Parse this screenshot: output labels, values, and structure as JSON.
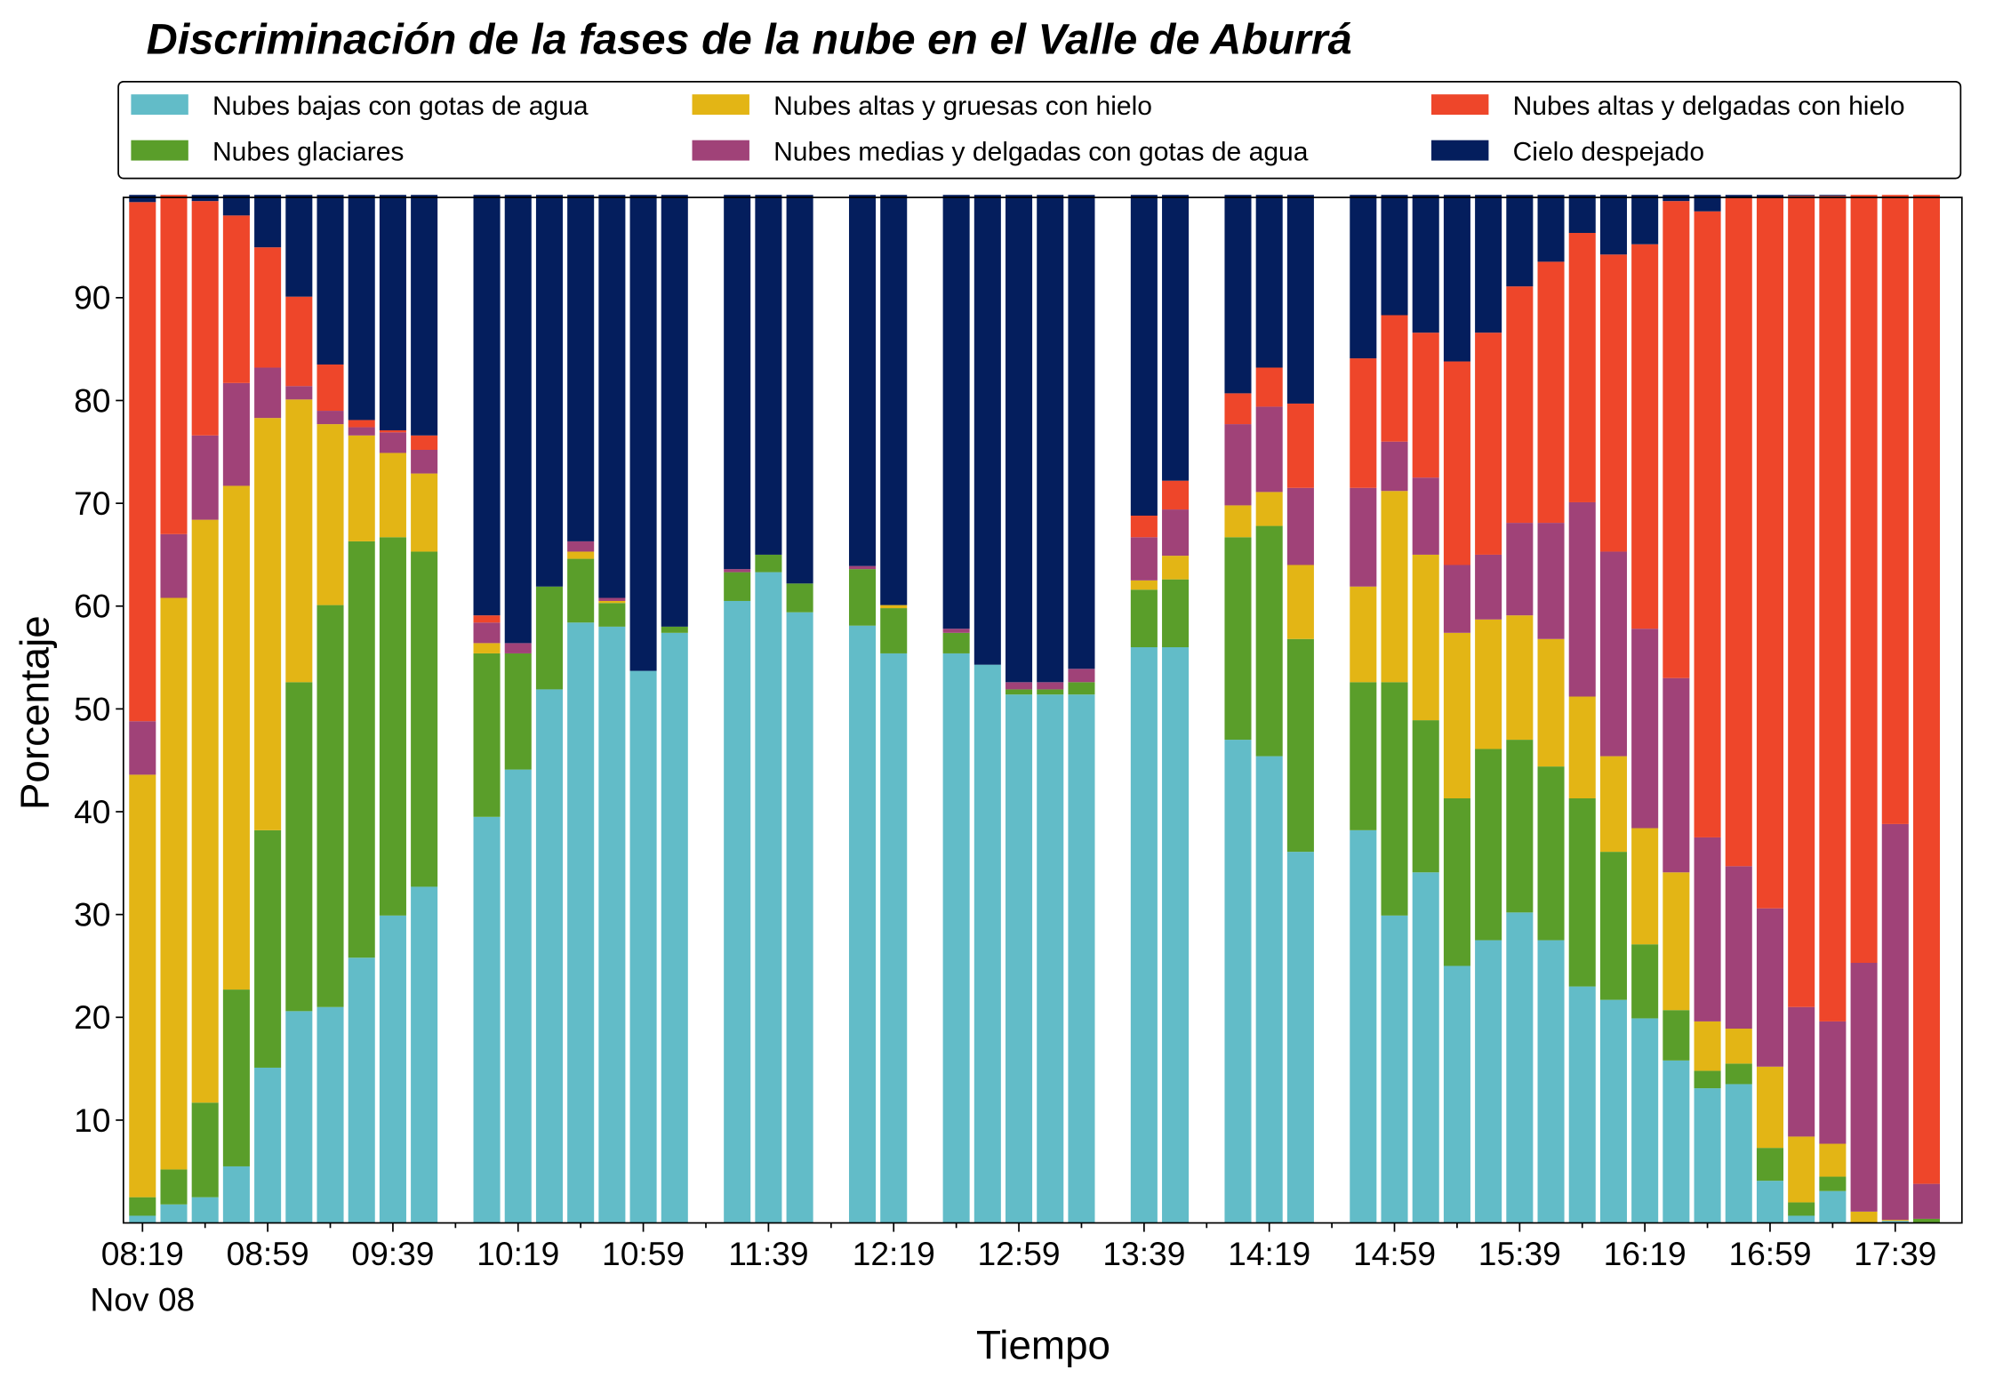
{
  "chart_data": {
    "type": "stacked_bar",
    "title": "Discriminación de la fases de la nube en el Valle de Aburrá",
    "x_label": "Tiempo",
    "y_label": "Porcentaje",
    "date_label": "Nov 08",
    "categories": [
      "08:19",
      null,
      null,
      null,
      "08:59",
      null,
      null,
      null,
      "09:39",
      null,
      null,
      null,
      "10:19",
      null,
      null,
      null,
      "10:59",
      null,
      null,
      null,
      "11:39",
      null,
      null,
      null,
      "12:19",
      null,
      null,
      null,
      "12:59",
      null,
      null,
      null,
      "13:39",
      null,
      null,
      null,
      "14:19",
      null,
      null,
      null,
      "14:59",
      null,
      null,
      null,
      "15:39",
      null,
      null,
      null,
      "16:19",
      null,
      null,
      null,
      "16:59",
      null,
      null,
      null,
      "17:39",
      null
    ],
    "ylim": [
      0,
      100
    ],
    "yticks": [
      10,
      20,
      30,
      40,
      50,
      60,
      70,
      80,
      90
    ],
    "series": [
      {
        "name": "Nubes bajas con gotas de agua",
        "color": "#62bcc8",
        "values": [
          0.7,
          1.8,
          2.5,
          5.5,
          15.1,
          20.6,
          21.0,
          25.8,
          29.9,
          32.7,
          null,
          39.5,
          44.1,
          51.9,
          58.4,
          58.0,
          53.7,
          57.4,
          null,
          60.5,
          63.3,
          59.4,
          null,
          58.1,
          55.4,
          null,
          55.4,
          54.3,
          51.4,
          51.4,
          51.4,
          null,
          56.0,
          56.0,
          null,
          47.0,
          45.4,
          36.1,
          null,
          38.2,
          29.9,
          34.1,
          25.0,
          27.5,
          30.2,
          27.5,
          23.0,
          21.7,
          19.9,
          15.8,
          13.1,
          13.5,
          4.1,
          0.7,
          3.1,
          0,
          0.2,
          0
        ]
      },
      {
        "name": "Nubes glaciares",
        "color": "#5a9e2a",
        "values": [
          1.8,
          3.4,
          9.2,
          17.2,
          23.1,
          32.0,
          39.1,
          40.5,
          36.8,
          32.6,
          null,
          15.9,
          11.3,
          10.0,
          6.2,
          2.3,
          0,
          0.6,
          null,
          2.8,
          1.7,
          2.8,
          null,
          5.5,
          4.4,
          null,
          2.0,
          0,
          0.5,
          0.5,
          1.2,
          null,
          5.6,
          6.6,
          null,
          19.7,
          22.4,
          20.7,
          null,
          14.4,
          22.7,
          14.8,
          16.3,
          18.6,
          16.8,
          16.9,
          18.3,
          14.4,
          7.2,
          4.9,
          1.7,
          2.0,
          3.2,
          1.3,
          1.4,
          0,
          0,
          0.4
        ]
      },
      {
        "name": "Nubes altas y gruesas con hielo",
        "color": "#e3b515",
        "values": [
          41.1,
          55.6,
          56.7,
          49.0,
          40.1,
          27.5,
          17.6,
          10.3,
          8.2,
          7.6,
          null,
          1.0,
          0,
          0,
          0.7,
          0.2,
          0,
          0,
          null,
          0,
          0,
          0,
          null,
          0,
          0.3,
          null,
          0,
          0,
          0,
          0,
          0,
          null,
          0.9,
          2.3,
          null,
          3.1,
          3.3,
          7.2,
          null,
          9.3,
          18.6,
          16.1,
          16.1,
          12.6,
          12.1,
          12.4,
          9.9,
          9.3,
          11.3,
          13.4,
          4.8,
          3.4,
          7.9,
          6.4,
          3.2,
          1.1,
          0.1,
          0
        ]
      },
      {
        "name": "Nubes medias y delgadas con gotas de agua",
        "color": "#a04278",
        "values": [
          5.2,
          6.2,
          8.2,
          10.0,
          4.9,
          1.3,
          1.3,
          0.8,
          2.0,
          2.3,
          null,
          2.0,
          1.0,
          0,
          1.0,
          0.3,
          0,
          0,
          null,
          0.3,
          0,
          0,
          null,
          0.3,
          0,
          null,
          0.4,
          0,
          0.7,
          0.7,
          1.3,
          null,
          4.2,
          4.5,
          null,
          7.9,
          8.3,
          7.5,
          null,
          9.6,
          4.8,
          7.5,
          6.6,
          6.3,
          9.0,
          11.3,
          18.9,
          19.9,
          19.4,
          18.9,
          17.9,
          15.8,
          15.4,
          12.6,
          11.9,
          24.2,
          38.5,
          3.4
        ]
      },
      {
        "name": "Nubes altas y delgadas con hielo",
        "color": "#ee462a",
        "values": [
          50.5,
          33.0,
          22.8,
          16.3,
          11.7,
          8.7,
          4.5,
          0.7,
          0.2,
          1.4,
          null,
          0.7,
          0,
          0,
          0,
          0,
          0,
          0,
          null,
          0,
          0,
          0,
          null,
          0,
          0,
          null,
          0,
          0,
          0,
          0,
          0,
          null,
          2.1,
          2.8,
          null,
          3.0,
          3.8,
          8.2,
          null,
          12.6,
          12.3,
          14.1,
          19.8,
          21.6,
          23.0,
          25.4,
          26.2,
          28.9,
          37.4,
          46.4,
          60.9,
          65.0,
          69.1,
          78.9,
          80.3,
          74.7,
          61.2,
          96.2
        ]
      },
      {
        "name": "Cielo despejado",
        "color": "#041e5d",
        "values": [
          0.7,
          0,
          0.6,
          2.0,
          5.1,
          9.9,
          16.5,
          21.9,
          22.9,
          23.4,
          null,
          40.9,
          43.6,
          38.1,
          33.7,
          39.2,
          46.3,
          42.0,
          null,
          36.4,
          35.0,
          37.8,
          null,
          36.1,
          39.9,
          null,
          42.2,
          45.7,
          47.4,
          47.4,
          46.1,
          null,
          31.2,
          27.8,
          null,
          19.3,
          16.8,
          20.3,
          null,
          15.9,
          11.7,
          13.4,
          16.2,
          13.4,
          8.9,
          6.5,
          3.7,
          5.8,
          4.8,
          0.6,
          1.6,
          0.3,
          0.3,
          0.1,
          0.1,
          0,
          0,
          0
        ]
      }
    ],
    "legend": "upper center"
  }
}
